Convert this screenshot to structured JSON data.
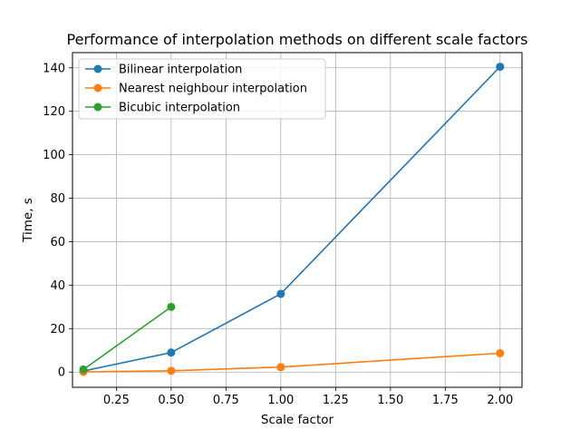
{
  "chart_data": {
    "type": "line",
    "title": "Performance of interpolation methods on different scale factors",
    "xlabel": "Scale factor",
    "ylabel": "Time, s",
    "xlim": [
      0.05,
      2.1
    ],
    "ylim": [
      -7,
      147
    ],
    "xticks": [
      0.25,
      0.5,
      0.75,
      1.0,
      1.25,
      1.5,
      1.75,
      2.0
    ],
    "xtick_labels": [
      "0.25",
      "0.50",
      "0.75",
      "1.00",
      "1.25",
      "1.50",
      "1.75",
      "2.00"
    ],
    "yticks": [
      0,
      20,
      40,
      60,
      80,
      100,
      120,
      140
    ],
    "ytick_labels": [
      "0",
      "20",
      "40",
      "60",
      "80",
      "100",
      "120",
      "140"
    ],
    "grid": true,
    "legend_position": "top-left",
    "series": [
      {
        "name": "Bilinear interpolation",
        "color": "#1f77b4",
        "x": [
          0.1,
          0.5,
          1.0,
          2.0
        ],
        "y": [
          0.5,
          9,
          36,
          140.5
        ]
      },
      {
        "name": "Nearest neighbour interpolation",
        "color": "#ff7f0e",
        "x": [
          0.1,
          0.5,
          1.0,
          2.0
        ],
        "y": [
          0.1,
          0.6,
          2.3,
          8.7
        ]
      },
      {
        "name": "Bicubic interpolation",
        "color": "#2ca02c",
        "x": [
          0.1,
          0.5
        ],
        "y": [
          1.2,
          30
        ]
      }
    ]
  }
}
